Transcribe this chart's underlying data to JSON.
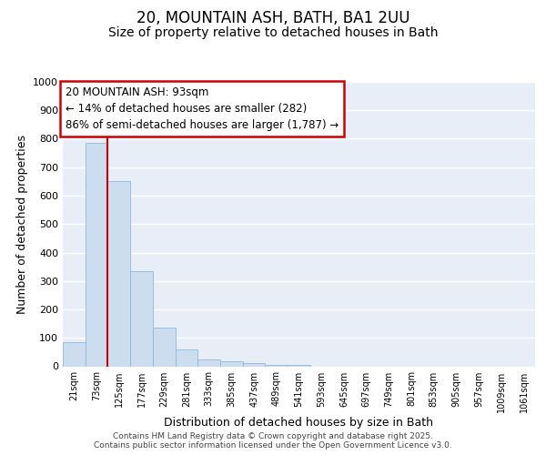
{
  "title1": "20, MOUNTAIN ASH, BATH, BA1 2UU",
  "title2": "Size of property relative to detached houses in Bath",
  "xlabel": "Distribution of detached houses by size in Bath",
  "ylabel": "Number of detached properties",
  "bar_color": "#ccddf0",
  "bar_edge_color": "#90b8d8",
  "bins": [
    "21sqm",
    "73sqm",
    "125sqm",
    "177sqm",
    "229sqm",
    "281sqm",
    "333sqm",
    "385sqm",
    "437sqm",
    "489sqm",
    "541sqm",
    "593sqm",
    "645sqm",
    "697sqm",
    "749sqm",
    "801sqm",
    "853sqm",
    "905sqm",
    "957sqm",
    "1009sqm",
    "1061sqm"
  ],
  "values": [
    85,
    785,
    650,
    335,
    135,
    60,
    25,
    18,
    10,
    5,
    4,
    0,
    0,
    0,
    0,
    0,
    0,
    0,
    0,
    0,
    0
  ],
  "property_bin_index": 1,
  "red_line_color": "#cc0000",
  "annotation_line1": "20 MOUNTAIN ASH: 93sqm",
  "annotation_line2": "← 14% of detached houses are smaller (282)",
  "annotation_line3": "86% of semi-detached houses are larger (1,787) →",
  "annotation_box_edge_color": "#cc0000",
  "ylim": [
    0,
    1000
  ],
  "yticks": [
    0,
    100,
    200,
    300,
    400,
    500,
    600,
    700,
    800,
    900,
    1000
  ],
  "background_color": "#e8eef8",
  "grid_color": "#ffffff",
  "footer_text": "Contains HM Land Registry data © Crown copyright and database right 2025.\nContains public sector information licensed under the Open Government Licence v3.0.",
  "title_fontsize": 12,
  "subtitle_fontsize": 10,
  "axis_label_fontsize": 9,
  "tick_fontsize": 7,
  "annotation_fontsize": 8.5,
  "footer_fontsize": 6.5
}
